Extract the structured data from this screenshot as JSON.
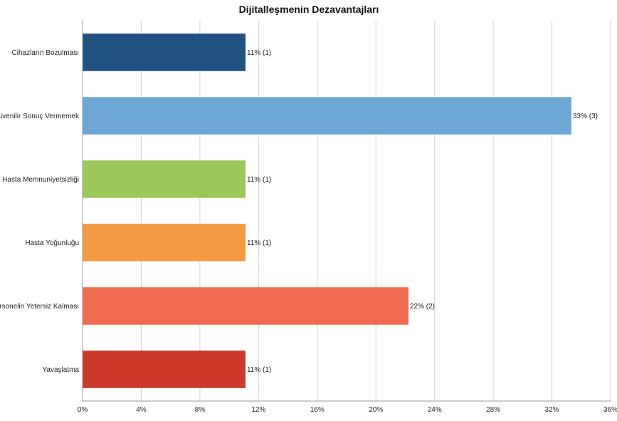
{
  "chart_data": {
    "type": "bar",
    "orientation": "horizontal",
    "title": "Dijitalleşmenin Dezavantajları",
    "categories": [
      "Cihazların Bozulması",
      "Güvenilir Sonuç Vermemek",
      "Hasta Memnuniyetsizliği",
      "Hasta Yoğunluğu",
      "Personelin Yetersiz Kalması",
      "Yavaşlatma"
    ],
    "values": [
      11.11,
      33.33,
      11.11,
      11.11,
      22.22,
      11.11
    ],
    "counts": [
      1,
      3,
      1,
      1,
      2,
      1
    ],
    "data_labels": [
      "11% (1)",
      "33% (3)",
      "11% (1)",
      "11% (1)",
      "22% (2)",
      "11% (1)"
    ],
    "colors": [
      "#1f5280",
      "#6ea6d5",
      "#9bc85a",
      "#f39a43",
      "#ee6a50",
      "#cc3829"
    ],
    "xlim": [
      0,
      36
    ],
    "x_ticks": [
      0,
      4,
      8,
      12,
      16,
      20,
      24,
      28,
      32,
      36
    ],
    "x_tick_labels": [
      "0%",
      "4%",
      "8%",
      "12%",
      "16%",
      "20%",
      "24%",
      "28%",
      "32%",
      "36%"
    ],
    "xlabel": "",
    "ylabel": "",
    "grid": true,
    "legend": "none"
  }
}
